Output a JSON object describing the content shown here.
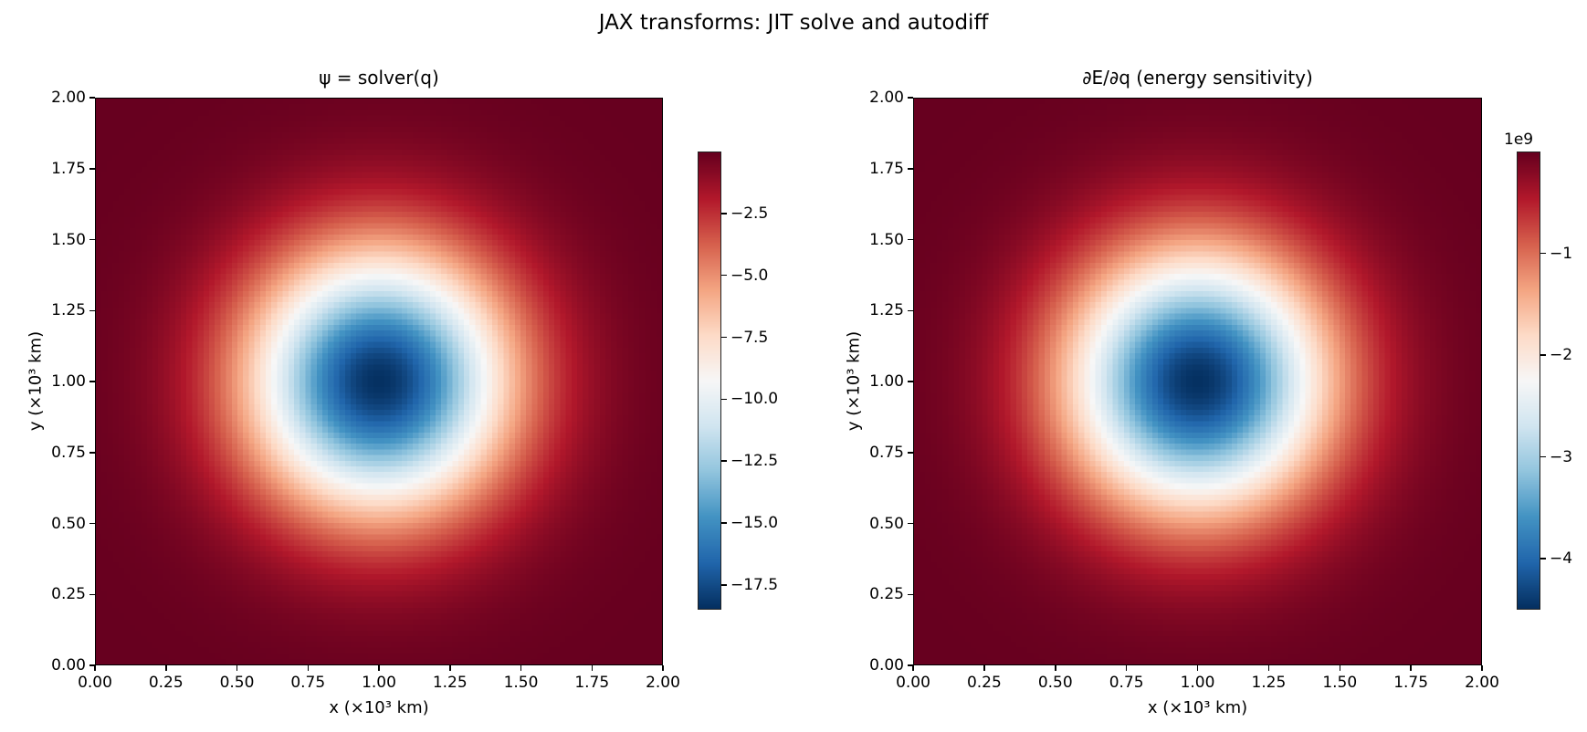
{
  "figure": {
    "suptitle": "JAX transforms: JIT solve and autodiff"
  },
  "chart_data": [
    {
      "type": "heatmap",
      "title": "ψ = solver(q)",
      "xlabel": "x (×10³ km)",
      "ylabel": "y (×10³ km)",
      "xlim": [
        0,
        2
      ],
      "ylim": [
        0,
        2
      ],
      "xticks": [
        "0.00",
        "0.25",
        "0.50",
        "0.75",
        "1.00",
        "1.25",
        "1.50",
        "1.75",
        "2.00"
      ],
      "yticks": [
        "0.00",
        "0.25",
        "0.50",
        "0.75",
        "1.00",
        "1.25",
        "1.50",
        "1.75",
        "2.00"
      ],
      "colormap": "RdBu_r",
      "field": {
        "shape": "gaussian",
        "center": [
          1.0,
          1.0
        ],
        "min": -18.5,
        "max": 0.0
      },
      "colorbar": {
        "range": [
          -18.5,
          0.0
        ],
        "ticks": [
          "−2.5",
          "−5.0",
          "−7.5",
          "−10.0",
          "−12.5",
          "−15.0",
          "−17.5"
        ],
        "tick_values": [
          -2.5,
          -5,
          -7.5,
          -10,
          -12.5,
          -15,
          -17.5
        ],
        "offset_label": ""
      }
    },
    {
      "type": "heatmap",
      "title": "∂E/∂q (energy sensitivity)",
      "xlabel": "x (×10³ km)",
      "ylabel": "y (×10³ km)",
      "xlim": [
        0,
        2
      ],
      "ylim": [
        0,
        2
      ],
      "xticks": [
        "0.00",
        "0.25",
        "0.50",
        "0.75",
        "1.00",
        "1.25",
        "1.50",
        "1.75",
        "2.00"
      ],
      "yticks": [
        "0.00",
        "0.25",
        "0.50",
        "0.75",
        "1.00",
        "1.25",
        "1.50",
        "1.75",
        "2.00"
      ],
      "colormap": "RdBu_r",
      "field": {
        "shape": "gaussian",
        "center": [
          1.0,
          1.0
        ],
        "min": -4.5,
        "max": 0.0
      },
      "colorbar": {
        "range": [
          -4.5,
          0.0
        ],
        "ticks": [
          "−1",
          "−2",
          "−3",
          "−4"
        ],
        "tick_values": [
          -1,
          -2,
          -3,
          -4
        ],
        "offset_label": "1e9"
      }
    }
  ]
}
